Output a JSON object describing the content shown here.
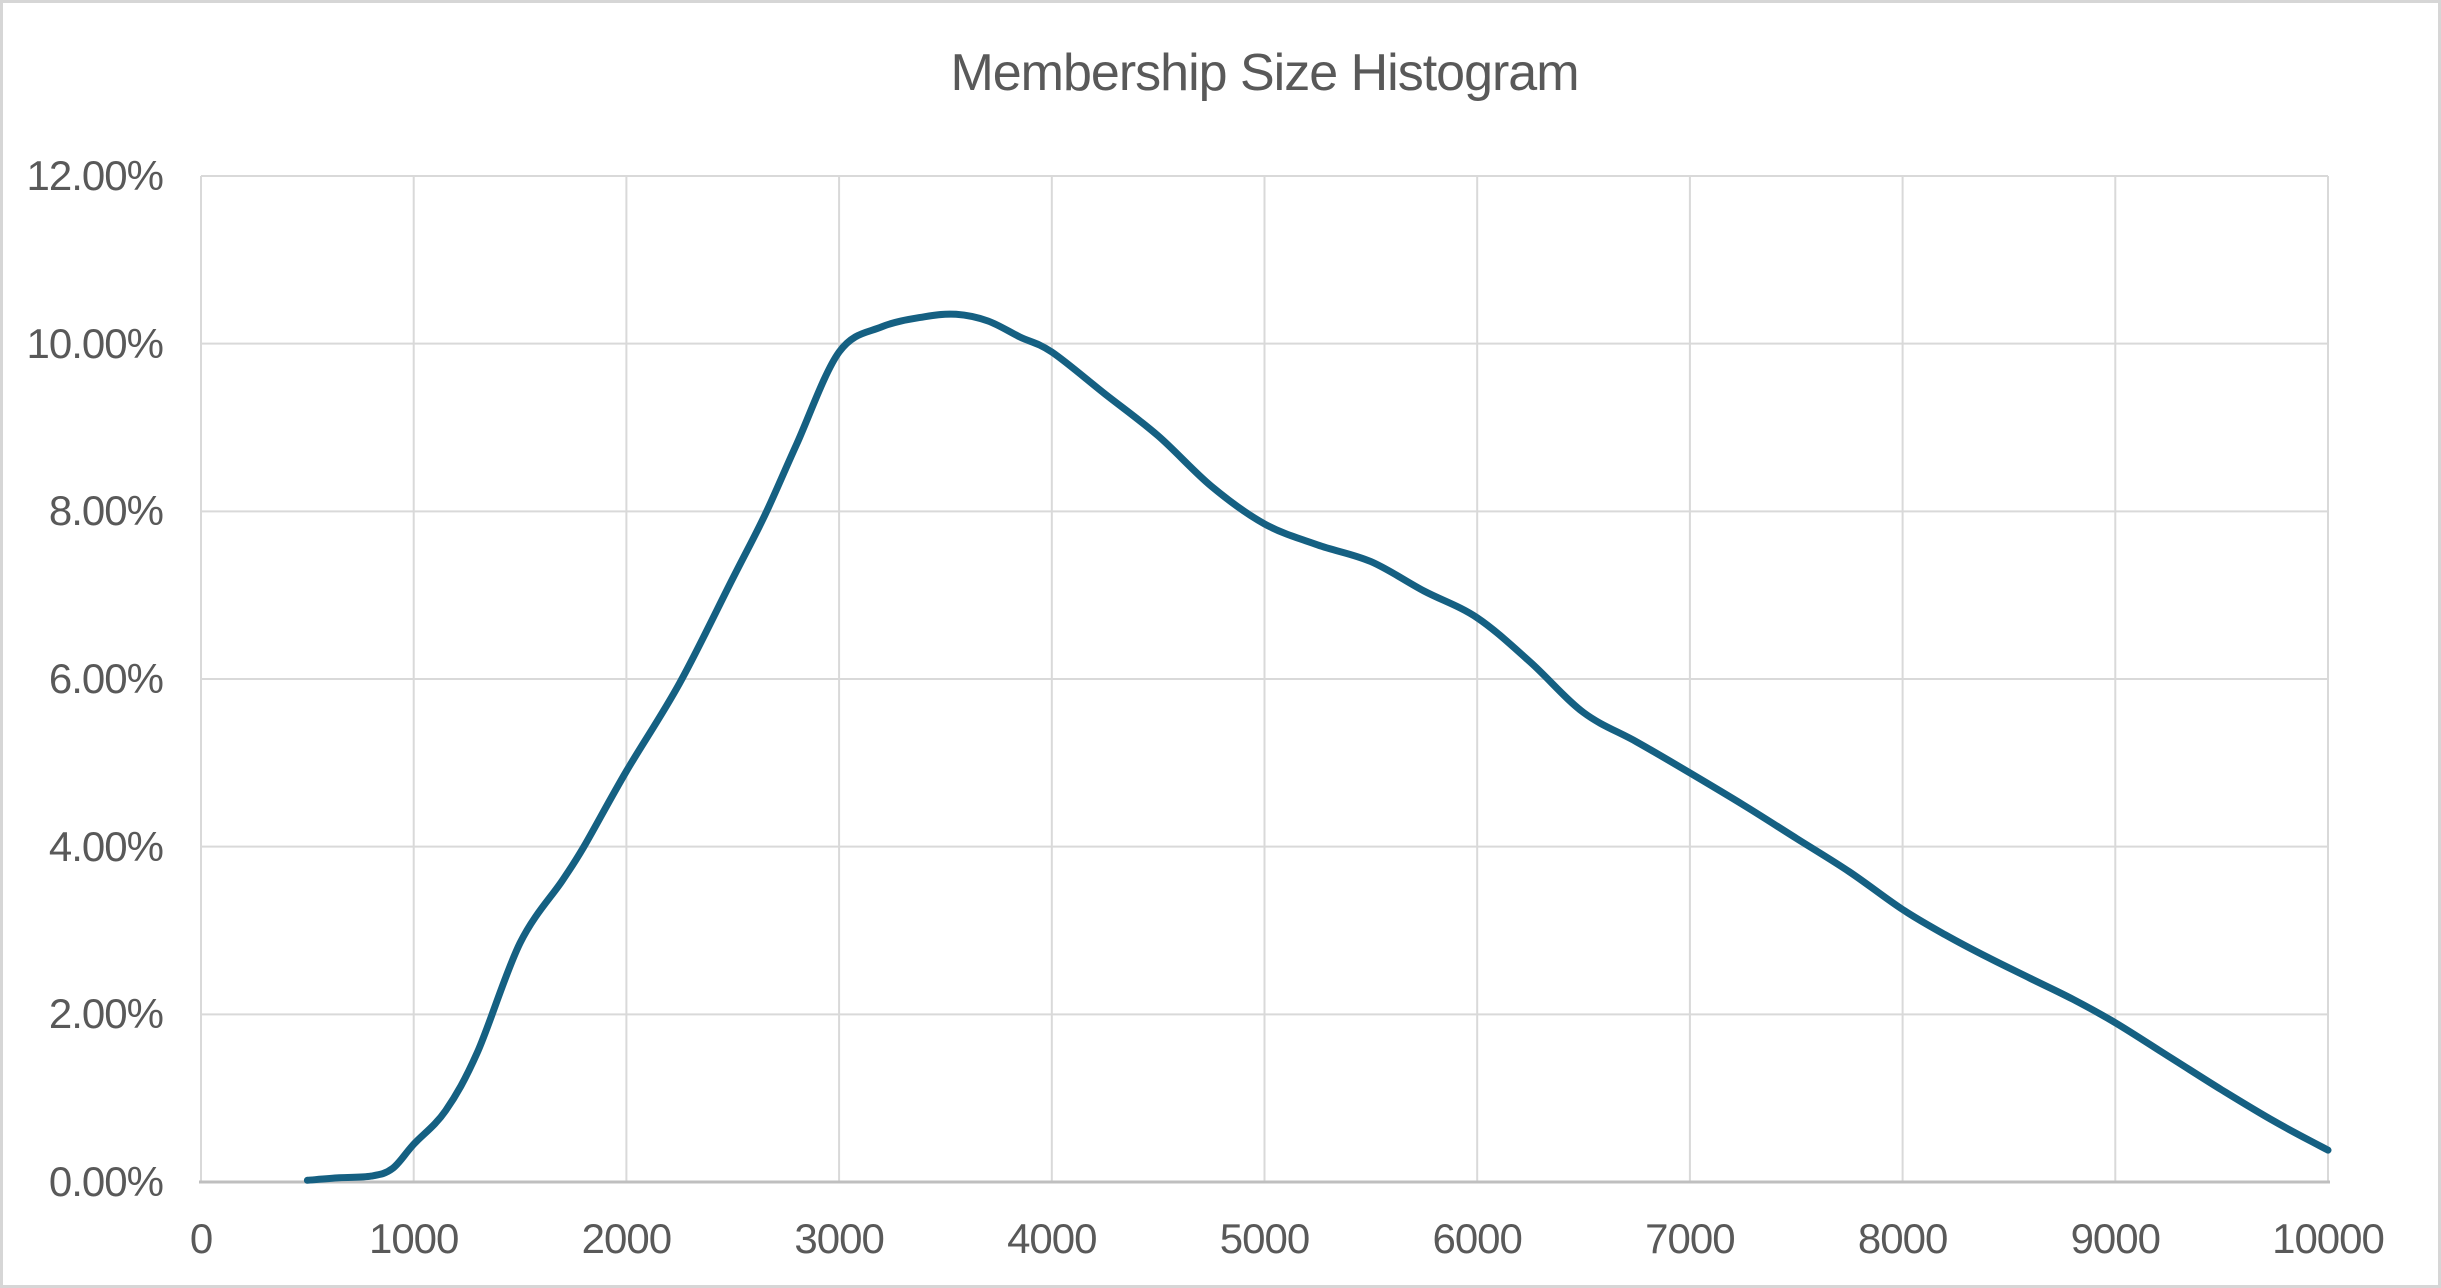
{
  "chart_data": {
    "type": "line",
    "title": "Membership Size Histogram",
    "xlabel": "",
    "ylabel": "",
    "grid": true,
    "legend": "none",
    "x_axis": {
      "min": 0,
      "max": 10000,
      "tick_step": 1000,
      "tick_labels": [
        "0",
        "1000",
        "2000",
        "3000",
        "4000",
        "5000",
        "6000",
        "7000",
        "8000",
        "9000",
        "10000"
      ]
    },
    "y_axis": {
      "min_percent": 0,
      "max_percent": 12,
      "tick_step_percent": 2,
      "tick_labels": [
        "0.00%",
        "2.00%",
        "4.00%",
        "6.00%",
        "8.00%",
        "10.00%",
        "12.00%"
      ]
    },
    "series": [
      {
        "color": "#156082",
        "points": [
          [
            500,
            0.02
          ],
          [
            650,
            0.05
          ],
          [
            800,
            0.07
          ],
          [
            900,
            0.16
          ],
          [
            1000,
            0.45
          ],
          [
            1150,
            0.85
          ],
          [
            1300,
            1.55
          ],
          [
            1500,
            2.85
          ],
          [
            1700,
            3.6
          ],
          [
            1800,
            4.0
          ],
          [
            2000,
            4.9
          ],
          [
            2250,
            5.95
          ],
          [
            2500,
            7.2
          ],
          [
            2650,
            7.95
          ],
          [
            2800,
            8.8
          ],
          [
            3000,
            9.9
          ],
          [
            3200,
            10.2
          ],
          [
            3400,
            10.32
          ],
          [
            3550,
            10.35
          ],
          [
            3700,
            10.27
          ],
          [
            3850,
            10.08
          ],
          [
            4000,
            9.9
          ],
          [
            4250,
            9.4
          ],
          [
            4500,
            8.9
          ],
          [
            4750,
            8.3
          ],
          [
            5000,
            7.85
          ],
          [
            5250,
            7.6
          ],
          [
            5500,
            7.4
          ],
          [
            5750,
            7.05
          ],
          [
            6000,
            6.73
          ],
          [
            6250,
            6.2
          ],
          [
            6500,
            5.6
          ],
          [
            6750,
            5.25
          ],
          [
            7000,
            4.88
          ],
          [
            7250,
            4.5
          ],
          [
            7500,
            4.1
          ],
          [
            7750,
            3.7
          ],
          [
            8000,
            3.25
          ],
          [
            8200,
            2.95
          ],
          [
            8400,
            2.68
          ],
          [
            8600,
            2.43
          ],
          [
            8800,
            2.18
          ],
          [
            9000,
            1.9
          ],
          [
            9250,
            1.5
          ],
          [
            9500,
            1.1
          ],
          [
            9750,
            0.72
          ],
          [
            10000,
            0.38
          ]
        ]
      }
    ]
  },
  "colors": {
    "line": "#156082",
    "gridline": "#d9d9d9",
    "axis_line": "#bfbfbf",
    "text": "#595959",
    "background": "#ffffff",
    "frame_border": "#d6d6d6"
  }
}
